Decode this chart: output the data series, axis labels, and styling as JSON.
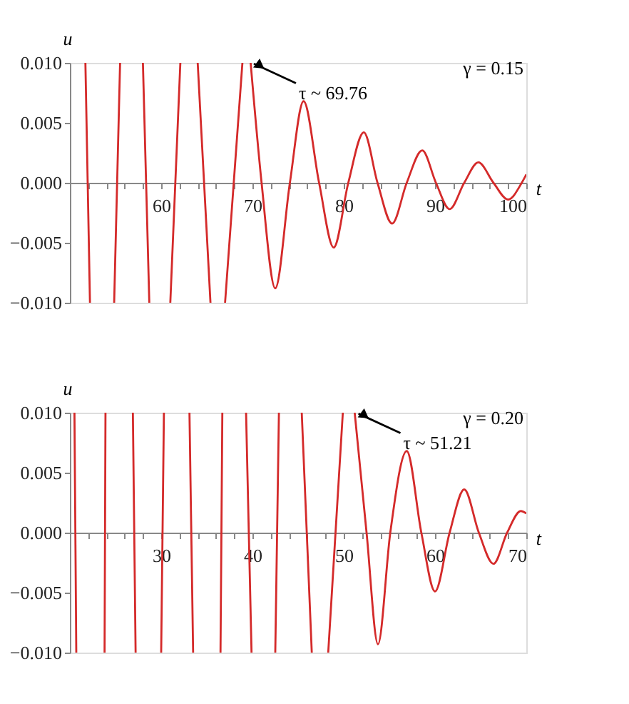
{
  "chart_data": [
    {
      "type": "line",
      "xlabel": "t",
      "ylabel": "u",
      "xlim": [
        50,
        100
      ],
      "ylim": [
        -0.01,
        0.01
      ],
      "xticks": [
        {
          "value": 52,
          "label": null
        },
        {
          "value": 54,
          "label": null
        },
        {
          "value": 56,
          "label": null
        },
        {
          "value": 58,
          "label": null
        },
        60,
        {
          "value": 62,
          "label": null
        },
        {
          "value": 64,
          "label": null
        },
        {
          "value": 66,
          "label": null
        },
        {
          "value": 68,
          "label": null
        },
        70,
        {
          "value": 72,
          "label": null
        },
        {
          "value": 74,
          "label": null
        },
        {
          "value": 76,
          "label": null
        },
        {
          "value": 78,
          "label": null
        },
        80,
        {
          "value": 82,
          "label": null
        },
        {
          "value": 84,
          "label": null
        },
        {
          "value": 86,
          "label": null
        },
        {
          "value": 88,
          "label": null
        },
        90,
        {
          "value": 92,
          "label": null
        },
        {
          "value": 94,
          "label": null
        },
        {
          "value": 96,
          "label": null
        },
        {
          "value": 98,
          "label": null
        },
        100
      ],
      "yticks": [
        {
          "value": -0.01,
          "label": "−0.010"
        },
        {
          "value": -0.005,
          "label": "−0.005"
        },
        {
          "value": 0,
          "label": "0.000"
        },
        {
          "value": 0.005,
          "label": "0.005"
        },
        {
          "value": 0.01,
          "label": "0.010"
        }
      ],
      "grid": false,
      "line_style": "solid",
      "marker": "none",
      "series": [
        {
          "color": "#d42a2a",
          "x": [
            51.7,
            52.2,
            53.0,
            54.85,
            55.5,
            56.5,
            58.0,
            58.7,
            60.0,
            61.0,
            62.1,
            63.0,
            64.0,
            65.4,
            66.2,
            67.0,
            68.9,
            69.4,
            69.8,
            71.0,
            72.5,
            74.1,
            75.6,
            77.3,
            78.9,
            80.5,
            82.2,
            83.7,
            85.3,
            86.9,
            88.6,
            90.1,
            91.6,
            93.2,
            94.75,
            96.4,
            98.0,
            99.5,
            100
          ],
          "values": [
            0.01,
            -0.01,
            null,
            -0.01,
            0.01,
            null,
            0.01,
            -0.01,
            null,
            -0.01,
            0.01,
            null,
            0.01,
            -0.01,
            null,
            -0.01,
            0.01,
            null,
            0.01,
            0,
            -0.0088,
            0,
            0.0068,
            0,
            -0.0054,
            0,
            0.0042,
            0,
            -0.0034,
            0,
            0.0027,
            0,
            -0.0022,
            0,
            0.0017,
            0,
            -0.0014,
            0,
            0.0007
          ]
        }
      ],
      "annotations": [
        {
          "text": "τ ~ 69.76",
          "x": 69.76,
          "y": 0.01
        },
        "γ = 0.15"
      ]
    },
    {
      "type": "line",
      "xlabel": "t",
      "ylabel": "u",
      "xlim": [
        20,
        70
      ],
      "ylim": [
        -0.01,
        0.01
      ],
      "xticks": [
        {
          "value": 22,
          "label": null
        },
        {
          "value": 24,
          "label": null
        },
        {
          "value": 26,
          "label": null
        },
        {
          "value": 28,
          "label": null
        },
        30,
        {
          "value": 32,
          "label": null
        },
        {
          "value": 34,
          "label": null
        },
        {
          "value": 36,
          "label": null
        },
        {
          "value": 38,
          "label": null
        },
        40,
        {
          "value": 42,
          "label": null
        },
        {
          "value": 44,
          "label": null
        },
        {
          "value": 46,
          "label": null
        },
        {
          "value": 48,
          "label": null
        },
        50,
        {
          "value": 52,
          "label": null
        },
        {
          "value": 54,
          "label": null
        },
        {
          "value": 56,
          "label": null
        },
        {
          "value": 58,
          "label": null
        },
        60,
        {
          "value": 62,
          "label": null
        },
        {
          "value": 64,
          "label": null
        },
        {
          "value": 66,
          "label": null
        },
        {
          "value": 68,
          "label": null
        },
        70
      ],
      "yticks": [
        {
          "value": -0.01,
          "label": "−0.010"
        },
        {
          "value": -0.005,
          "label": "−0.005"
        },
        {
          "value": 0,
          "label": "0.000"
        },
        {
          "value": 0.005,
          "label": "0.005"
        },
        {
          "value": 0.01,
          "label": "0.010"
        }
      ],
      "grid": false,
      "line_style": "solid",
      "marker": "none",
      "series": [
        {
          "color": "#d42a2a",
          "x": [
            20.5,
            20.7,
            22.0,
            23.8,
            23.9,
            25.0,
            26.9,
            27.2,
            28.5,
            30.0,
            30.3,
            31.5,
            33.1,
            33.5,
            35.0,
            36.5,
            36.7,
            38.0,
            39.3,
            39.9,
            41.0,
            42.5,
            42.9,
            44.0,
            45.4,
            46.5,
            47.5,
            48.3,
            49.9,
            50.5,
            51.2,
            52.5,
            53.75,
            55.1,
            56.9,
            58.5,
            60.0,
            61.6,
            63.2,
            64.8,
            66.4,
            67.9,
            69.4,
            70.0
          ],
          "values": [
            0.01,
            -0.01,
            null,
            -0.01,
            0.01,
            null,
            0.01,
            -0.01,
            null,
            -0.01,
            0.01,
            null,
            0.01,
            -0.01,
            null,
            -0.01,
            0.01,
            null,
            0.01,
            -0.01,
            null,
            -0.01,
            0.01,
            null,
            0.01,
            -0.01,
            null,
            -0.01,
            0.01,
            null,
            0.01,
            0,
            -0.0093,
            0,
            0.0068,
            0,
            -0.0049,
            0,
            0.0036,
            0,
            -0.0026,
            0,
            0.0018,
            0.0016
          ]
        }
      ],
      "annotations": [
        {
          "text": "τ ~ 51.21",
          "x": 51.21,
          "y": 0.01
        },
        "γ = 0.20"
      ]
    }
  ]
}
